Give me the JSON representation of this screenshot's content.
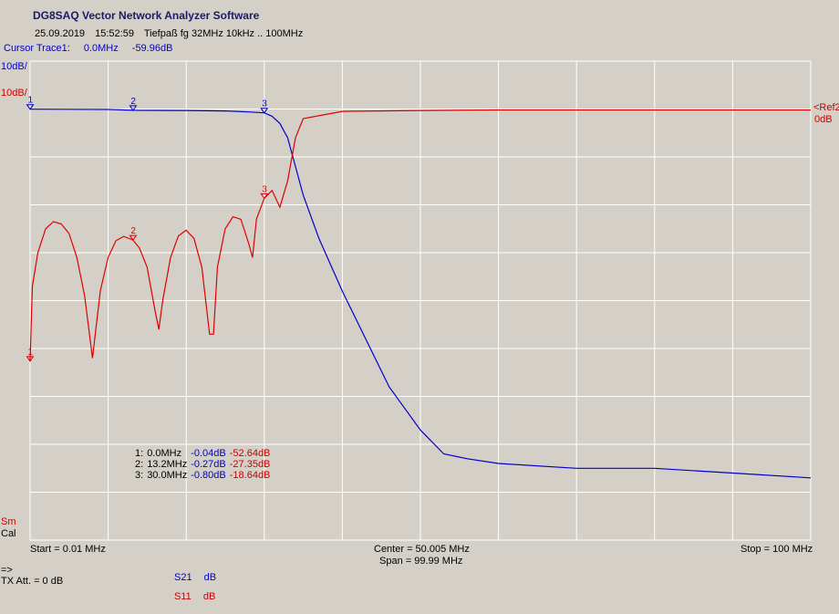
{
  "app": {
    "title": "DG8SAQ Vector Network Analyzer Software",
    "date": "25.09.2019",
    "time": "15:52:59",
    "measurement": "Tiefpaß fg 32MHz 10kHz .. 100MHz"
  },
  "cursor": {
    "label": "Cursor Trace1:",
    "freq": "0.0MHz",
    "value": "-59.96dB"
  },
  "scale": {
    "left_top": "10dB/",
    "left_second": "10dB/",
    "right_ref": "<Ref2",
    "right_ref_val": "0dB"
  },
  "left_tags": {
    "sm": "Sm",
    "cal": "Cal"
  },
  "axis": {
    "start": "Start = 0.01 MHz",
    "center": "Center = 50.005 MHz",
    "span": "Span = 99.99 MHz",
    "stop": "Stop = 100 MHz"
  },
  "status": {
    "arrow": "=>",
    "tx_att": "TX Att.  = 0 dB"
  },
  "legend": [
    {
      "name": "S21",
      "unit": "dB",
      "color": "#0000cc"
    },
    {
      "name": "S11",
      "unit": "dB",
      "color": "#dd0000"
    }
  ],
  "markers": [
    {
      "idx": "1:",
      "freq": "0.0MHz",
      "s21": "-0.04dB",
      "s11": "-52.64dB"
    },
    {
      "idx": "2:",
      "freq": "13.2MHz",
      "s21": "-0.27dB",
      "s11": "-27.35dB"
    },
    {
      "idx": "3:",
      "freq": "30.0MHz",
      "s21": "-0.80dB",
      "s11": "-18.64dB"
    }
  ],
  "chart_data": {
    "type": "line",
    "xlabel": "",
    "ylabel": "",
    "xlim": [
      0.01,
      100
    ],
    "ylim_db_divisions": 10,
    "grid": true,
    "series": [
      {
        "name": "S21",
        "color": "#0000cc",
        "x": [
          0.01,
          5,
          10,
          13.2,
          20,
          25,
          28,
          30,
          31,
          32,
          33,
          34,
          35,
          37,
          40,
          43,
          46,
          50,
          53,
          56,
          60,
          70,
          80,
          90,
          100
        ],
        "y": [
          -0.04,
          -0.05,
          -0.1,
          -0.27,
          -0.3,
          -0.4,
          -0.6,
          -0.8,
          -1.5,
          -3,
          -6,
          -12,
          -18,
          -27,
          -38,
          -48,
          -58,
          -67,
          -72,
          -73,
          -74,
          -75,
          -75,
          -76,
          -77
        ]
      },
      {
        "name": "S11",
        "color": "#dd0000",
        "x": [
          0.01,
          0.3,
          1,
          2,
          3,
          4,
          5,
          6,
          7,
          8,
          9,
          10,
          11,
          12,
          13.2,
          14,
          15,
          16,
          16.5,
          17,
          18,
          19,
          20,
          21,
          22,
          23,
          23.5,
          24,
          25,
          26,
          27,
          28,
          28.5,
          29,
          30,
          31,
          32,
          33,
          34,
          35,
          40,
          50,
          60,
          70,
          80,
          90,
          100
        ],
        "y": [
          -52.64,
          -37,
          -30,
          -25,
          -23.5,
          -24,
          -26,
          -31,
          -39,
          -52,
          -38,
          -31,
          -27.5,
          -26.6,
          -27.35,
          -29,
          -33,
          -42,
          -46,
          -40,
          -31,
          -26.5,
          -25.3,
          -27,
          -33,
          -47,
          -47,
          -33,
          -25,
          -22.5,
          -23,
          -28,
          -31,
          -23,
          -18.64,
          -17,
          -20.5,
          -15,
          -6,
          -2,
          -0.5,
          -0.3,
          -0.2,
          -0.2,
          -0.2,
          -0.2,
          -0.2
        ]
      }
    ],
    "marker_freqs": [
      0.01,
      13.2,
      30.0
    ]
  }
}
